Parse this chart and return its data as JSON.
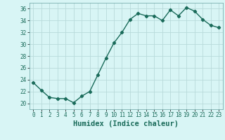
{
  "x": [
    0,
    1,
    2,
    3,
    4,
    5,
    6,
    7,
    8,
    9,
    10,
    11,
    12,
    13,
    14,
    15,
    16,
    17,
    18,
    19,
    20,
    21,
    22,
    23
  ],
  "y": [
    23.5,
    22.2,
    21.0,
    20.8,
    20.8,
    20.1,
    21.2,
    22.0,
    24.8,
    27.6,
    30.2,
    32.0,
    34.2,
    35.2,
    34.8,
    34.8,
    34.0,
    35.8,
    34.8,
    36.2,
    35.6,
    34.2,
    33.2,
    32.8
  ],
  "line_color": "#1a6b5a",
  "marker": "D",
  "marker_size": 2.2,
  "bg_color": "#d8f5f5",
  "grid_color": "#b8dada",
  "xlabel": "Humidex (Indice chaleur)",
  "ylim": [
    19,
    37
  ],
  "yticks": [
    20,
    22,
    24,
    26,
    28,
    30,
    32,
    34,
    36
  ],
  "xlim": [
    -0.5,
    23.5
  ],
  "xticks": [
    0,
    1,
    2,
    3,
    4,
    5,
    6,
    7,
    8,
    9,
    10,
    11,
    12,
    13,
    14,
    15,
    16,
    17,
    18,
    19,
    20,
    21,
    22,
    23
  ],
  "xlabel_fontsize": 7.5,
  "tick_fontsize": 5.5,
  "line_width": 1.0
}
